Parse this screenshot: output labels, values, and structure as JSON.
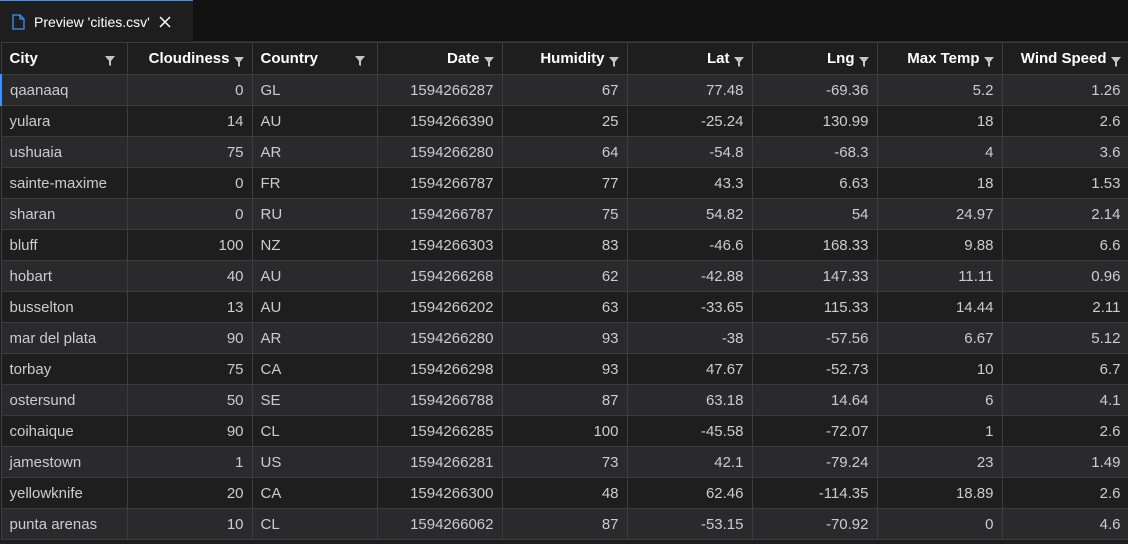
{
  "tab": {
    "title": "Preview 'cities.csv'",
    "icon": "file-icon",
    "close_icon": "close-icon"
  },
  "colors": {
    "accent": "#3794ff",
    "background": "#1e1e1e",
    "row_alt": "#2a2a2d",
    "tabbar": "#121212"
  },
  "table": {
    "columns": [
      "City",
      "Cloudiness",
      "Country",
      "Date",
      "Humidity",
      "Lat",
      "Lng",
      "Max Temp",
      "Wind Speed"
    ],
    "rows": [
      [
        "qaanaaq",
        "0",
        "GL",
        "1594266287",
        "67",
        "77.48",
        "-69.36",
        "5.2",
        "1.26"
      ],
      [
        "yulara",
        "14",
        "AU",
        "1594266390",
        "25",
        "-25.24",
        "130.99",
        "18",
        "2.6"
      ],
      [
        "ushuaia",
        "75",
        "AR",
        "1594266280",
        "64",
        "-54.8",
        "-68.3",
        "4",
        "3.6"
      ],
      [
        "sainte-maxime",
        "0",
        "FR",
        "1594266787",
        "77",
        "43.3",
        "6.63",
        "18",
        "1.53"
      ],
      [
        "sharan",
        "0",
        "RU",
        "1594266787",
        "75",
        "54.82",
        "54",
        "24.97",
        "2.14"
      ],
      [
        "bluff",
        "100",
        "NZ",
        "1594266303",
        "83",
        "-46.6",
        "168.33",
        "9.88",
        "6.6"
      ],
      [
        "hobart",
        "40",
        "AU",
        "1594266268",
        "62",
        "-42.88",
        "147.33",
        "11.11",
        "0.96"
      ],
      [
        "busselton",
        "13",
        "AU",
        "1594266202",
        "63",
        "-33.65",
        "115.33",
        "14.44",
        "2.11"
      ],
      [
        "mar del plata",
        "90",
        "AR",
        "1594266280",
        "93",
        "-38",
        "-57.56",
        "6.67",
        "5.12"
      ],
      [
        "torbay",
        "75",
        "CA",
        "1594266298",
        "93",
        "47.67",
        "-52.73",
        "10",
        "6.7"
      ],
      [
        "ostersund",
        "50",
        "SE",
        "1594266788",
        "87",
        "63.18",
        "14.64",
        "6",
        "4.1"
      ],
      [
        "coihaique",
        "90",
        "CL",
        "1594266285",
        "100",
        "-45.58",
        "-72.07",
        "1",
        "2.6"
      ],
      [
        "jamestown",
        "1",
        "US",
        "1594266281",
        "73",
        "42.1",
        "-79.24",
        "23",
        "1.49"
      ],
      [
        "yellowknife",
        "20",
        "CA",
        "1594266300",
        "48",
        "62.46",
        "-114.35",
        "18.89",
        "2.6"
      ],
      [
        "punta arenas",
        "10",
        "CL",
        "1594266062",
        "87",
        "-53.15",
        "-70.92",
        "0",
        "4.6"
      ]
    ]
  }
}
